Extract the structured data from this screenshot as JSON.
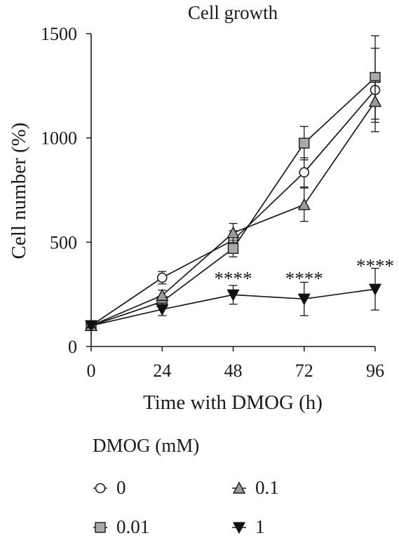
{
  "chart_data": {
    "type": "line",
    "title": "Cell growth",
    "xlabel": "Time with DMOG (h)",
    "ylabel": "Cell number (%)",
    "x": [
      0,
      24,
      48,
      72,
      96
    ],
    "x_ticks": [
      "0",
      "24",
      "48",
      "72",
      "96"
    ],
    "xlim": [
      0,
      96
    ],
    "y_ticks": [
      "0",
      "500",
      "1000",
      "1500"
    ],
    "ylim": [
      0,
      1500
    ],
    "grid": false,
    "legend_title": "DMOG (mM)",
    "series": [
      {
        "name": "0",
        "marker": "circle-open",
        "values": [
          100,
          330,
          510,
          835,
          1230
        ],
        "errors": [
          10,
          30,
          45,
          70,
          200
        ]
      },
      {
        "name": "0.01",
        "marker": "square-gray",
        "values": [
          100,
          215,
          470,
          975,
          1290
        ],
        "errors": [
          10,
          25,
          40,
          80,
          200
        ]
      },
      {
        "name": "0.1",
        "marker": "triangle-up-gray",
        "values": [
          100,
          245,
          545,
          680,
          1175
        ],
        "errors": [
          10,
          25,
          45,
          80,
          100
        ]
      },
      {
        "name": "1",
        "marker": "triangle-down-black",
        "values": [
          100,
          178,
          248,
          228,
          275
        ],
        "errors": [
          10,
          30,
          45,
          80,
          100
        ]
      }
    ],
    "annotations": [
      {
        "x": 48,
        "y": 330,
        "text": "****"
      },
      {
        "x": 72,
        "y": 330,
        "text": "****"
      },
      {
        "x": 96,
        "y": 390,
        "text": "****"
      }
    ]
  }
}
